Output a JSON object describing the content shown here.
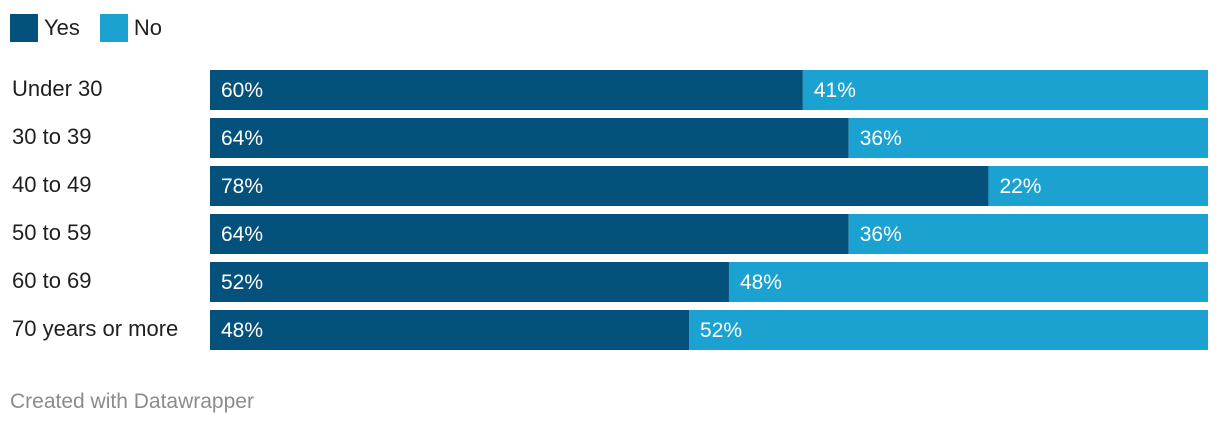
{
  "legend": {
    "yes_label": "Yes",
    "no_label": "No"
  },
  "colors": {
    "yes": "#04527c",
    "no": "#1ba2d1",
    "category_text": "#1f1f1f",
    "value_text": "#ffffff"
  },
  "footer": "Created with Datawrapper",
  "chart_data": {
    "type": "bar",
    "orientation": "horizontal",
    "stacked": true,
    "categories": [
      "Under 30",
      "30 to 39",
      "40 to 49",
      "50 to 59",
      "60 to 69",
      "70 years or more"
    ],
    "series": [
      {
        "name": "Yes",
        "values": [
          60,
          64,
          78,
          64,
          52,
          48
        ],
        "labels": [
          "60%",
          "64%",
          "78%",
          "64%",
          "52%",
          "48%"
        ]
      },
      {
        "name": "No",
        "values": [
          41,
          36,
          22,
          36,
          48,
          52
        ],
        "labels": [
          "41%",
          "36%",
          "22%",
          "36%",
          "48%",
          "52%"
        ]
      }
    ],
    "legend_position": "top-left",
    "grid": false
  }
}
